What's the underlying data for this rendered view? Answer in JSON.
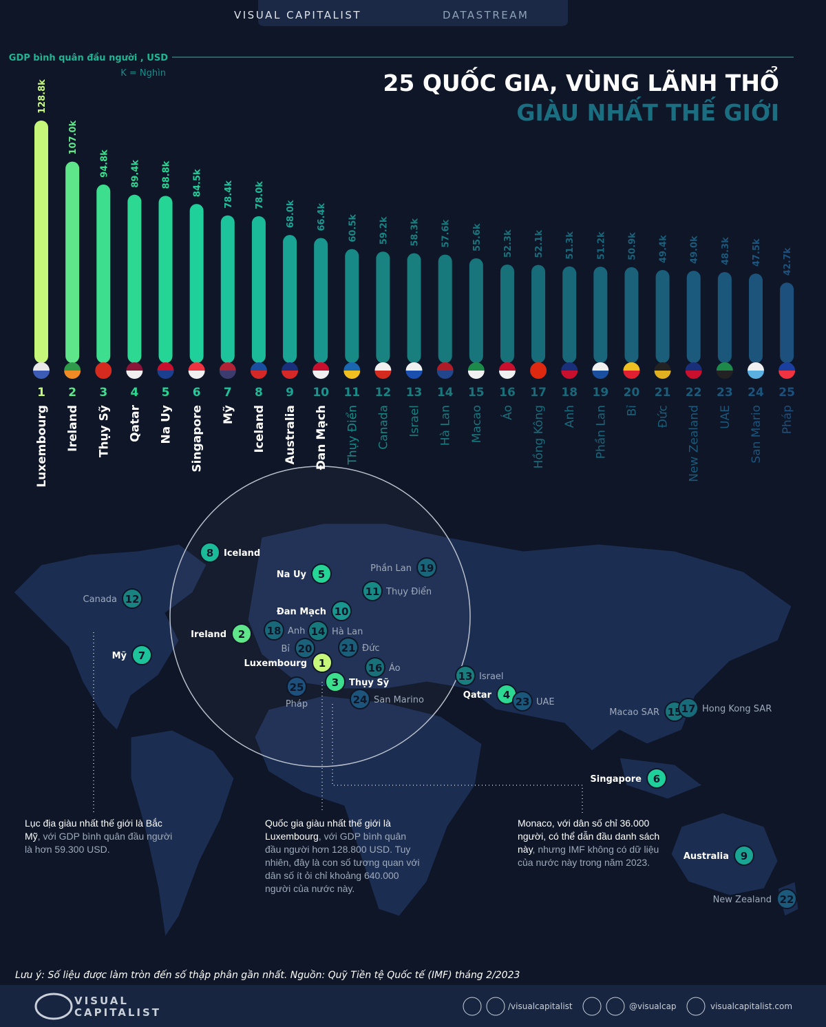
{
  "header": {
    "brand": "VISUAL CAPITALIST",
    "product": "DATASTREAM"
  },
  "chart_data": {
    "type": "bar",
    "title": "25 QUỐC GIA, VÙNG LÃNH THỔ",
    "subtitle": "GIÀU NHẤT THẾ GIỚI",
    "y_label": "GDP bình quân đầu người , USD",
    "unit_note": "K = Nghìn",
    "ranks": [
      1,
      2,
      3,
      4,
      5,
      6,
      7,
      8,
      9,
      10,
      11,
      12,
      13,
      14,
      15,
      16,
      17,
      18,
      19,
      20,
      21,
      22,
      23,
      24,
      25
    ],
    "categories": [
      "Luxembourg",
      "Ireland",
      "Thụy Sỹ",
      "Qatar",
      "Na Uy",
      "Singapore",
      "Mỹ",
      "Iceland",
      "Australia",
      "Đan Mạch",
      "Thụy Điển",
      "Canada",
      "Israel",
      "Hà Lan",
      "Macao",
      "Áo",
      "Hồng Kông",
      "Anh",
      "Phần Lan",
      "Bỉ",
      "Đức",
      "New Zealand",
      "UAE",
      "San Mario",
      "Pháp"
    ],
    "values": [
      128.8,
      107.0,
      94.8,
      89.4,
      88.8,
      84.5,
      78.4,
      78.0,
      68.0,
      66.4,
      60.5,
      59.2,
      58.3,
      57.6,
      55.6,
      52.3,
      52.1,
      51.3,
      51.2,
      50.9,
      49.4,
      49.0,
      48.3,
      47.5,
      42.7
    ],
    "value_labels": [
      "128.8k",
      "107.0k",
      "94.8k",
      "89.4k",
      "88.8k",
      "84.5k",
      "78.4k",
      "78.0k",
      "68.0k",
      "66.4k",
      "60.5k",
      "59.2k",
      "58.3k",
      "57.6k",
      "55.6k",
      "52.3k",
      "52.1k",
      "51.3k",
      "51.2k",
      "50.9k",
      "49.4k",
      "49.0k",
      "48.3k",
      "47.5k",
      "42.7k"
    ],
    "colors": [
      "#c6f77a",
      "#5fe68a",
      "#3ddf8e",
      "#2dd992",
      "#25d596",
      "#1fd09a",
      "#1dc39a",
      "#1bba98",
      "#1aa493",
      "#19968d",
      "#188a86",
      "#188380",
      "#187f7e",
      "#18797c",
      "#18757b",
      "#187079",
      "#186c79",
      "#196879",
      "#196579",
      "#1a6179",
      "#1a5e79",
      "#1b5a7a",
      "#1b577a",
      "#1c547b",
      "#1d507c"
    ]
  },
  "map": {
    "markers": [
      {
        "rank": 8,
        "label": "Iceland"
      },
      {
        "rank": 5,
        "label": "Na Uy"
      },
      {
        "rank": 19,
        "label": "Phần Lan"
      },
      {
        "rank": 11,
        "label": "Thụy Điển"
      },
      {
        "rank": 12,
        "label": "Canada"
      },
      {
        "rank": 10,
        "label": "Đan Mạch"
      },
      {
        "rank": 2,
        "label": "Ireland"
      },
      {
        "rank": 18,
        "label": "Anh"
      },
      {
        "rank": 14,
        "label": "Hà Lan"
      },
      {
        "rank": 20,
        "label": "Bỉ"
      },
      {
        "rank": 21,
        "label": "Đức"
      },
      {
        "rank": 7,
        "label": "Mỹ"
      },
      {
        "rank": 1,
        "label": "Luxembourg"
      },
      {
        "rank": 16,
        "label": "Áo"
      },
      {
        "rank": 3,
        "label": "Thụy Sỹ"
      },
      {
        "rank": 25,
        "label": "Pháp"
      },
      {
        "rank": 24,
        "label": "San Marino"
      },
      {
        "rank": 13,
        "label": "Israel"
      },
      {
        "rank": 4,
        "label": "Qatar"
      },
      {
        "rank": 23,
        "label": "UAE"
      },
      {
        "rank": 15,
        "label": "Macao SAR"
      },
      {
        "rank": 17,
        "label": "Hong Kong SAR"
      },
      {
        "rank": 6,
        "label": "Singapore"
      },
      {
        "rank": 9,
        "label": "Australia"
      },
      {
        "rank": 22,
        "label": "New Zealand"
      }
    ],
    "notes": [
      {
        "bold": "Lục địa giàu nhất thế giới là Bắc Mỹ",
        "rest": ", với GDP bình quân đầu người là hơn 59.300 USD."
      },
      {
        "bold": "Quốc gia giàu nhất thế giới là Luxembourg",
        "rest": ", với GDP bình quân đầu người hơn 128.800 USD. Tuy nhiên, đây là con số tương quan với dân số ít ỏi chỉ khoảng 640.000 người của nước này."
      },
      {
        "bold": "Monaco, với dân số chỉ 36.000 người, có thể dẫn đầu danh sách này",
        "rest": ", nhưng IMF không có dữ liệu của nước này trong năm 2023."
      }
    ]
  },
  "footer": {
    "note": "Lưu ý: Số liệu được làm tròn đến số thập phân gần nhất. Nguồn: Quỹ Tiền tệ Quốc tế (IMF) tháng 2/2023",
    "logo_top": "VISUAL",
    "logo_bottom": "CAPITALIST",
    "social": "/visualcapitalist",
    "handle": "@visualcap",
    "site": "visualcapitalist.com"
  }
}
